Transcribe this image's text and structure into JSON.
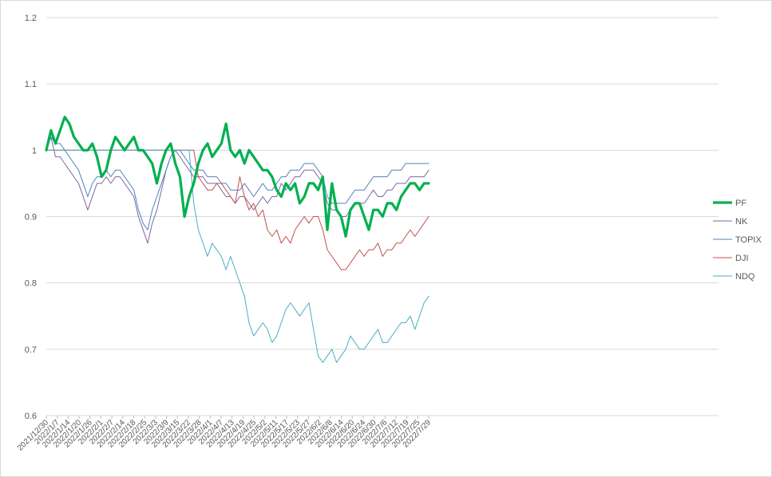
{
  "chart_data": {
    "type": "line",
    "title": "",
    "xlabel": "",
    "ylabel": "",
    "ylim": [
      0.6,
      1.2
    ],
    "y_ticks": [
      "0.6",
      "0.7",
      "0.8",
      "0.9",
      "1",
      "1.1",
      "1.2"
    ],
    "y_tick_values": [
      0.6,
      0.7,
      0.8,
      0.9,
      1.0,
      1.1,
      1.2
    ],
    "grid": "horizontal",
    "legend_position": "right",
    "x_ticks": [
      "2021/12/30",
      "2022/1/7",
      "2022/1/14",
      "2022/1/20",
      "2022/1/26",
      "2022/2/1",
      "2022/2/7",
      "2022/2/14",
      "2022/2/18",
      "2022/2/25",
      "2022/3/3",
      "2022/3/9",
      "2022/3/15",
      "2022/3/22",
      "2022/3/28",
      "2022/4/1",
      "2022/4/7",
      "2022/4/13",
      "2022/4/19",
      "2022/4/25",
      "2022/5/2",
      "2022/5/11",
      "2022/5/17",
      "2022/5/23",
      "2022/5/27",
      "2022/6/2",
      "2022/6/8",
      "2022/6/14",
      "2022/6/20",
      "2022/6/24",
      "2022/6/30",
      "2022/7/6",
      "2022/7/12",
      "2022/7/19",
      "2022/7/25",
      "2022/7/29"
    ],
    "series": [
      {
        "name": "PF",
        "color": "#00b050",
        "width": 3.2,
        "values": [
          1.0,
          1.03,
          1.01,
          1.03,
          1.05,
          1.04,
          1.02,
          1.01,
          1.0,
          1.0,
          1.01,
          0.99,
          0.96,
          0.97,
          1.0,
          1.02,
          1.01,
          1.0,
          1.01,
          1.02,
          1.0,
          1.0,
          0.99,
          0.98,
          0.95,
          0.98,
          1.0,
          1.01,
          0.98,
          0.96,
          0.9,
          0.93,
          0.95,
          0.98,
          1.0,
          1.01,
          0.99,
          1.0,
          1.01,
          1.04,
          1.0,
          0.99,
          1.0,
          0.98,
          1.0,
          0.99,
          0.98,
          0.97,
          0.97,
          0.96,
          0.94,
          0.93,
          0.95,
          0.94,
          0.95,
          0.92,
          0.93,
          0.95,
          0.95,
          0.94,
          0.96,
          0.88,
          0.95,
          0.91,
          0.9,
          0.87,
          0.91,
          0.92,
          0.92,
          0.9,
          0.88,
          0.91,
          0.91,
          0.9,
          0.92,
          0.92,
          0.91,
          0.93,
          0.94,
          0.95,
          0.95,
          0.94,
          0.95,
          0.95
        ]
      },
      {
        "name": "NK",
        "color": "#8064a2",
        "width": 1,
        "values": [
          1.0,
          1.02,
          0.99,
          0.99,
          0.98,
          0.97,
          0.96,
          0.95,
          0.93,
          0.91,
          0.93,
          0.95,
          0.95,
          0.96,
          0.95,
          0.96,
          0.96,
          0.95,
          0.94,
          0.93,
          0.9,
          0.88,
          0.86,
          0.89,
          0.91,
          0.94,
          0.97,
          0.99,
          1.0,
          0.99,
          0.98,
          0.97,
          0.96,
          0.96,
          0.96,
          0.95,
          0.95,
          0.95,
          0.94,
          0.93,
          0.93,
          0.92,
          0.93,
          0.93,
          0.92,
          0.91,
          0.92,
          0.93,
          0.92,
          0.93,
          0.93,
          0.95,
          0.94,
          0.95,
          0.96,
          0.96,
          0.97,
          0.97,
          0.97,
          0.96,
          0.95,
          0.92,
          0.91,
          0.91,
          0.9,
          0.9,
          0.91,
          0.92,
          0.92,
          0.92,
          0.93,
          0.94,
          0.93,
          0.93,
          0.94,
          0.94,
          0.95,
          0.95,
          0.95,
          0.96,
          0.96,
          0.96,
          0.96,
          0.97
        ]
      },
      {
        "name": "TOPIX",
        "color": "#4f81bd",
        "width": 1,
        "values": [
          1.0,
          1.02,
          1.01,
          1.01,
          1.0,
          0.99,
          0.98,
          0.97,
          0.95,
          0.93,
          0.95,
          0.96,
          0.96,
          0.97,
          0.96,
          0.97,
          0.97,
          0.96,
          0.95,
          0.94,
          0.91,
          0.89,
          0.88,
          0.91,
          0.93,
          0.95,
          0.97,
          0.99,
          1.0,
          1.0,
          0.99,
          0.98,
          0.97,
          0.97,
          0.97,
          0.96,
          0.96,
          0.96,
          0.95,
          0.95,
          0.94,
          0.94,
          0.94,
          0.95,
          0.94,
          0.93,
          0.94,
          0.95,
          0.94,
          0.94,
          0.95,
          0.96,
          0.96,
          0.97,
          0.97,
          0.97,
          0.98,
          0.98,
          0.98,
          0.97,
          0.96,
          0.93,
          0.92,
          0.92,
          0.92,
          0.92,
          0.93,
          0.94,
          0.94,
          0.94,
          0.95,
          0.96,
          0.96,
          0.96,
          0.96,
          0.97,
          0.97,
          0.97,
          0.98,
          0.98,
          0.98,
          0.98,
          0.98,
          0.98
        ]
      },
      {
        "name": "DJI",
        "color": "#c0504d",
        "width": 1,
        "values": [
          1.0,
          1.0,
          1.0,
          1.0,
          1.0,
          1.0,
          1.0,
          1.0,
          1.0,
          1.0,
          1.0,
          1.0,
          1.0,
          1.0,
          1.0,
          1.0,
          1.0,
          1.0,
          1.0,
          1.0,
          1.0,
          1.0,
          1.0,
          1.0,
          1.0,
          1.0,
          1.0,
          1.0,
          1.0,
          1.0,
          1.0,
          1.0,
          1.0,
          0.96,
          0.95,
          0.94,
          0.94,
          0.95,
          0.95,
          0.94,
          0.93,
          0.92,
          0.96,
          0.93,
          0.91,
          0.92,
          0.9,
          0.91,
          0.88,
          0.87,
          0.88,
          0.86,
          0.87,
          0.86,
          0.88,
          0.89,
          0.9,
          0.89,
          0.9,
          0.9,
          0.88,
          0.85,
          0.84,
          0.83,
          0.82,
          0.82,
          0.83,
          0.84,
          0.85,
          0.84,
          0.85,
          0.85,
          0.86,
          0.84,
          0.85,
          0.85,
          0.86,
          0.86,
          0.87,
          0.88,
          0.87,
          0.88,
          0.89,
          0.9
        ]
      },
      {
        "name": "NDQ",
        "color": "#4bacc6",
        "width": 1,
        "values": [
          1.0,
          1.0,
          1.0,
          1.0,
          1.0,
          1.0,
          1.0,
          1.0,
          1.0,
          1.0,
          1.0,
          1.0,
          1.0,
          1.0,
          1.0,
          1.0,
          1.0,
          1.0,
          1.0,
          1.0,
          1.0,
          1.0,
          1.0,
          1.0,
          1.0,
          1.0,
          1.0,
          1.0,
          1.0,
          1.0,
          1.0,
          1.0,
          0.92,
          0.88,
          0.86,
          0.84,
          0.86,
          0.85,
          0.84,
          0.82,
          0.84,
          0.82,
          0.8,
          0.78,
          0.74,
          0.72,
          0.73,
          0.74,
          0.73,
          0.71,
          0.72,
          0.74,
          0.76,
          0.77,
          0.76,
          0.75,
          0.76,
          0.77,
          0.73,
          0.69,
          0.68,
          0.69,
          0.7,
          0.68,
          0.69,
          0.7,
          0.72,
          0.71,
          0.7,
          0.7,
          0.71,
          0.72,
          0.73,
          0.71,
          0.71,
          0.72,
          0.73,
          0.74,
          0.74,
          0.75,
          0.73,
          0.75,
          0.77,
          0.78
        ]
      }
    ]
  }
}
